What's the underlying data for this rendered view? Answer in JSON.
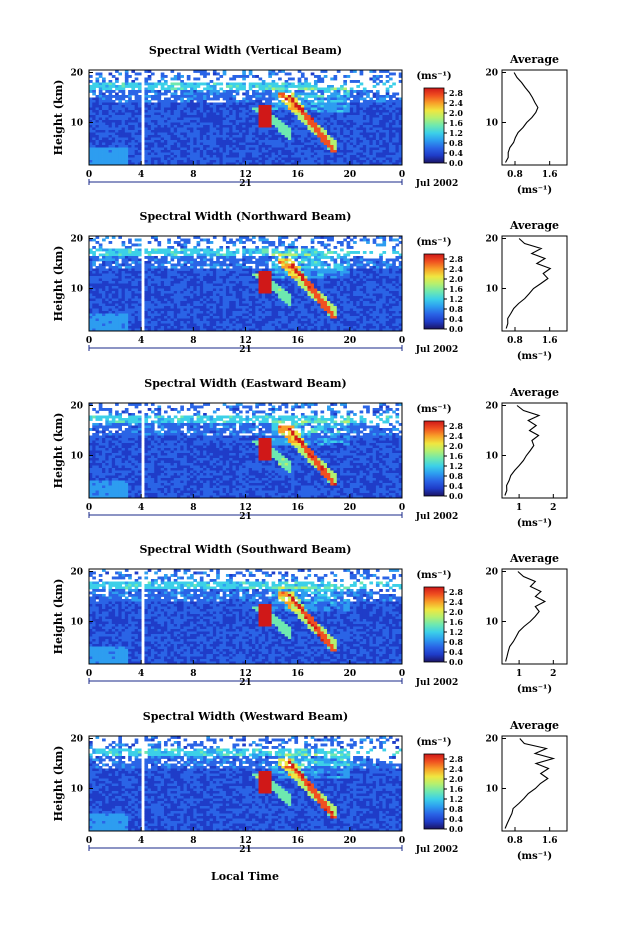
{
  "figure": {
    "xlabel": "Local Time",
    "date_label": "Jul 2002",
    "day_label": "21",
    "colorbar_unit": "(ms⁻¹)",
    "colorbar_ticks": [
      "0.0",
      "0.4",
      "0.8",
      "1.2",
      "1.6",
      "2.0",
      "2.4",
      "2.8"
    ],
    "colorbar_range": [
      0.0,
      3.0
    ],
    "colormap": [
      "#1b1464",
      "#1f3cc8",
      "#2a64e6",
      "#2d9df0",
      "#3cd0e8",
      "#6ee8b0",
      "#b4f070",
      "#f0e640",
      "#f8a028",
      "#f05020",
      "#d01818"
    ]
  },
  "chart_data": [
    {
      "type": "heatmap",
      "title": "Spectral Width (Vertical Beam)",
      "ylabel": "Height (km)",
      "x_ticks": [
        "0",
        "4",
        "8",
        "12",
        "16",
        "20",
        "0"
      ],
      "y_ticks": [
        "20",
        "10"
      ],
      "xlim": [
        0,
        24
      ],
      "ylim": [
        1.5,
        20.5
      ],
      "profile": {
        "title": "Average",
        "xlabel": "(ms⁻¹)",
        "x_ticks": [
          "0.8",
          "1.6"
        ],
        "xlim": [
          0.5,
          2.0
        ],
        "y_ticks": [
          "20",
          "10"
        ],
        "ylim": [
          1.5,
          20.5
        ],
        "heights": [
          2,
          3,
          4,
          5,
          6,
          7,
          8,
          9,
          10,
          11,
          12,
          13,
          14,
          15,
          16,
          17,
          18,
          19,
          20
        ],
        "values": [
          0.6,
          0.62,
          0.65,
          0.68,
          0.75,
          0.82,
          0.9,
          1.0,
          1.1,
          1.2,
          1.3,
          1.35,
          1.28,
          1.2,
          1.15,
          1.05,
          0.95,
          0.85,
          0.8
        ]
      }
    },
    {
      "type": "heatmap",
      "title": "Spectral Width (Northward Beam)",
      "ylabel": "Height (km)",
      "x_ticks": [
        "0",
        "4",
        "8",
        "12",
        "16",
        "20",
        "0"
      ],
      "y_ticks": [
        "20",
        "10"
      ],
      "xlim": [
        0,
        24
      ],
      "ylim": [
        1.5,
        20.5
      ],
      "profile": {
        "title": "Average",
        "xlabel": "(ms⁻¹)",
        "x_ticks": [
          "0.8",
          "1.6"
        ],
        "xlim": [
          0.5,
          2.0
        ],
        "y_ticks": [
          "20",
          "10"
        ],
        "ylim": [
          1.5,
          20.5
        ],
        "heights": [
          2,
          3,
          4,
          5,
          6,
          7,
          8,
          9,
          10,
          11,
          12,
          13,
          14,
          15,
          16,
          17,
          18,
          19,
          20
        ],
        "values": [
          0.6,
          0.62,
          0.66,
          0.7,
          0.78,
          0.88,
          1.0,
          1.12,
          1.25,
          1.4,
          1.55,
          1.45,
          1.6,
          1.3,
          1.5,
          1.2,
          1.4,
          1.0,
          0.9
        ]
      }
    },
    {
      "type": "heatmap",
      "title": "Spectral Width (Eastward Beam)",
      "ylabel": "Height (km)",
      "x_ticks": [
        "0",
        "4",
        "8",
        "12",
        "16",
        "20",
        "0"
      ],
      "y_ticks": [
        "20",
        "10"
      ],
      "xlim": [
        0,
        24
      ],
      "ylim": [
        1.5,
        20.5
      ],
      "profile": {
        "title": "Average",
        "xlabel": "(ms⁻¹)",
        "x_ticks": [
          "1",
          "2"
        ],
        "xlim": [
          0.5,
          2.4
        ],
        "y_ticks": [
          "20",
          "10"
        ],
        "ylim": [
          1.5,
          20.5
        ],
        "heights": [
          2,
          3,
          4,
          5,
          6,
          7,
          8,
          9,
          10,
          11,
          12,
          13,
          14,
          15,
          16,
          17,
          18,
          19,
          20
        ],
        "values": [
          0.6,
          0.62,
          0.66,
          0.7,
          0.78,
          0.88,
          1.0,
          1.1,
          1.2,
          1.3,
          1.45,
          1.35,
          1.55,
          1.3,
          1.5,
          1.25,
          1.6,
          1.1,
          0.95
        ]
      }
    },
    {
      "type": "heatmap",
      "title": "Spectral Width (Southward Beam)",
      "ylabel": "Height (km)",
      "x_ticks": [
        "0",
        "4",
        "8",
        "12",
        "16",
        "20",
        "0"
      ],
      "y_ticks": [
        "20",
        "10"
      ],
      "xlim": [
        0,
        24
      ],
      "ylim": [
        1.5,
        20.5
      ],
      "profile": {
        "title": "Average",
        "xlabel": "(ms⁻¹)",
        "x_ticks": [
          "1",
          "2"
        ],
        "xlim": [
          0.5,
          2.4
        ],
        "y_ticks": [
          "20",
          "10"
        ],
        "ylim": [
          1.5,
          20.5
        ],
        "heights": [
          2,
          3,
          4,
          5,
          6,
          7,
          8,
          9,
          10,
          11,
          12,
          13,
          14,
          15,
          16,
          17,
          18,
          19,
          20
        ],
        "values": [
          0.6,
          0.63,
          0.68,
          0.74,
          0.82,
          0.92,
          1.02,
          1.15,
          1.3,
          1.45,
          1.6,
          1.5,
          1.75,
          1.45,
          1.65,
          1.35,
          1.5,
          1.1,
          0.95
        ]
      }
    },
    {
      "type": "heatmap",
      "title": "Spectral Width (Westward Beam)",
      "ylabel": "Height (km)",
      "x_ticks": [
        "0",
        "4",
        "8",
        "12",
        "16",
        "20",
        "0"
      ],
      "y_ticks": [
        "20",
        "10"
      ],
      "xlim": [
        0,
        24
      ],
      "ylim": [
        1.5,
        20.5
      ],
      "profile": {
        "title": "Average",
        "xlabel": "(ms⁻¹)",
        "x_ticks": [
          "0.8",
          "1.6"
        ],
        "xlim": [
          0.5,
          2.0
        ],
        "y_ticks": [
          "20",
          "10"
        ],
        "ylim": [
          1.5,
          20.5
        ],
        "heights": [
          2,
          3,
          4,
          5,
          6,
          7,
          8,
          9,
          10,
          11,
          12,
          13,
          14,
          15,
          16,
          17,
          18,
          19,
          20
        ],
        "values": [
          0.6,
          0.62,
          0.65,
          0.7,
          0.78,
          0.88,
          0.98,
          1.1,
          1.25,
          1.4,
          1.55,
          1.4,
          1.6,
          1.3,
          1.7,
          1.25,
          1.5,
          1.0,
          0.9
        ]
      }
    }
  ]
}
